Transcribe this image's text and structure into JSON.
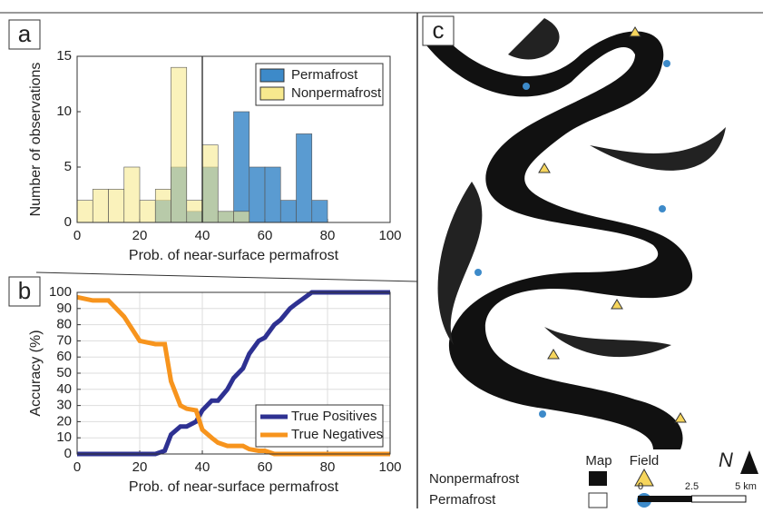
{
  "chart_data": [
    {
      "type": "histogram",
      "panel": "a",
      "xlabel": "Prob. of near-surface permafrost",
      "ylabel": "Number of observations",
      "bins": [
        0,
        5,
        10,
        15,
        20,
        25,
        30,
        35,
        40,
        45,
        50,
        55,
        60,
        65,
        70,
        75,
        80
      ],
      "series": [
        {
          "name": "Permafrost",
          "color": "#3d8ac9",
          "values": [
            0,
            0,
            0,
            0,
            0,
            2,
            5,
            1,
            5,
            1,
            10,
            5,
            5,
            2,
            8,
            2
          ]
        },
        {
          "name": "Nonpermafrost",
          "color": "#f7e98e",
          "values": [
            2,
            3,
            3,
            5,
            2,
            3,
            14,
            2,
            7,
            1,
            1,
            0,
            0,
            0,
            0,
            0
          ]
        }
      ],
      "vline": 40,
      "xlim": [
        0,
        100
      ],
      "xticks": [
        0,
        20,
        40,
        60,
        80,
        100
      ],
      "ylim": [
        0,
        15
      ],
      "yticks": [
        0,
        5,
        10,
        15
      ],
      "legend": "upper right"
    },
    {
      "type": "line",
      "panel": "b",
      "xlabel": "Prob. of near-surface permafrost",
      "ylabel": "Accuracy (%)",
      "x": [
        0,
        5,
        10,
        15,
        20,
        25,
        28,
        30,
        33,
        35,
        38,
        40,
        43,
        45,
        48,
        50,
        53,
        55,
        58,
        60,
        63,
        65,
        68,
        70,
        75,
        80,
        90,
        100
      ],
      "series": [
        {
          "name": "True Positives",
          "color": "#2e3192",
          "values": [
            0,
            0,
            0,
            0,
            0,
            0,
            2,
            12,
            17,
            17,
            20,
            27,
            33,
            33,
            40,
            47,
            53,
            62,
            70,
            72,
            80,
            83,
            90,
            93,
            100,
            100,
            100,
            100
          ]
        },
        {
          "name": "True Negatives",
          "color": "#f7941d",
          "values": [
            97,
            95,
            95,
            85,
            70,
            68,
            68,
            45,
            30,
            28,
            27,
            15,
            10,
            7,
            5,
            5,
            5,
            3,
            2,
            2,
            0,
            0,
            0,
            0,
            0,
            0,
            0,
            0
          ]
        }
      ],
      "xlim": [
        0,
        100
      ],
      "xticks": [
        0,
        20,
        40,
        60,
        80,
        100
      ],
      "ylim": [
        0,
        100
      ],
      "yticks": [
        0,
        10,
        20,
        30,
        40,
        50,
        60,
        70,
        80,
        90,
        100
      ],
      "grid": true,
      "legend": "lower right"
    }
  ],
  "map": {
    "panel": "c",
    "legend": {
      "map": "Map",
      "field": "Field",
      "items": [
        "Nonpermafrost",
        "Permafrost"
      ]
    },
    "north": "N",
    "scale": [
      0,
      2.5,
      {
        "value": 5,
        "label": "5 km"
      }
    ]
  }
}
